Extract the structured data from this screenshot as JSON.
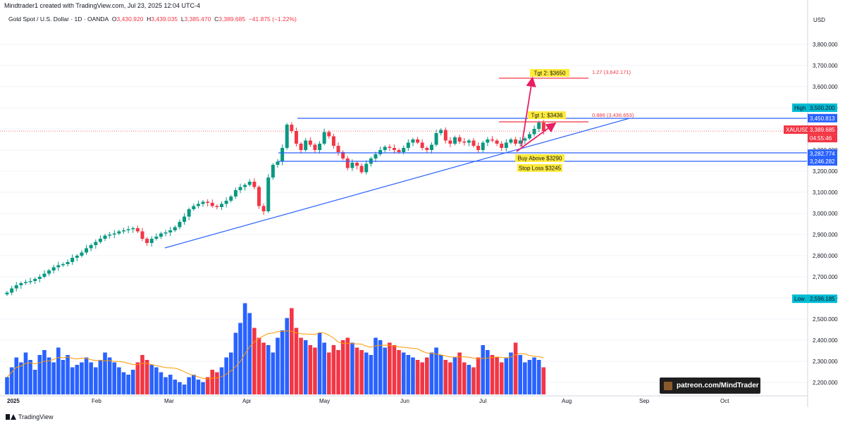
{
  "header": {
    "creator_line": "Mindtrader1 created with TradingView.com, Jul 23, 2025 12:04 UTC-4",
    "symbol_desc": "Gold Spot / U.S. Dollar · 1D · OANDA",
    "open_label": "O",
    "open": "3,430.920",
    "high_label": "H",
    "high": "3,439.035",
    "low_label": "L",
    "low": "3,385.470",
    "close_label": "C",
    "close": "3,389.685",
    "change": "−41.875 (−1.22%)"
  },
  "axis": {
    "currency": "USD"
  },
  "labels": {
    "high_tag": "High",
    "high_value": "3,500.200",
    "level_1": "3,450.813",
    "symbol_tag": "XAUUSD",
    "last_price": "3,389.685",
    "countdown": "04:55:46",
    "level_2": "3,282.774",
    "level_3": "3,246.282",
    "low_tag": "Low",
    "low_value": "2,596.185",
    "fib_1": "0.886 (3,436.653)",
    "fib_2": "1.27 (3,642.171)"
  },
  "annotations": {
    "tgt1": "Tgt 1: $3436",
    "tgt2": "Tgt 2: $3650",
    "buy": "Buy Above $3290",
    "stop": "Stop Loss $3245"
  },
  "footer": {
    "brand": "TradingView",
    "patreon": "patreon.com/MindTrader"
  },
  "colors": {
    "up": "#089981",
    "down": "#f23645",
    "vol_up": "#2962ff",
    "vol_down": "#f23645",
    "trend": "#2962ff",
    "arrow": "#e91e63",
    "tag": "#ffeb3b"
  },
  "chart_data": {
    "type": "candlestick",
    "y_axis_ticks": [
      "3,800.000",
      "3,700.000",
      "3,600.000",
      "3,500.000",
      "3,400.000",
      "3,300.000",
      "3,200.000",
      "3,100.000",
      "3,000.000",
      "2,900.000",
      "2,800.000",
      "2,700.000",
      "2,600.000",
      "2,500.000",
      "2,400.000",
      "2,300.000",
      "2,200.000"
    ],
    "x_axis_ticks": [
      "2025",
      "Feb",
      "Mar",
      "Apr",
      "May",
      "Jun",
      "Jul",
      "Aug",
      "Sep",
      "Oct"
    ],
    "price_path": [
      2625,
      2645,
      2660,
      2670,
      2675,
      2680,
      2690,
      2700,
      2715,
      2730,
      2745,
      2755,
      2760,
      2770,
      2790,
      2800,
      2815,
      2835,
      2850,
      2865,
      2880,
      2895,
      2900,
      2905,
      2915,
      2920,
      2925,
      2930,
      2915,
      2880,
      2860,
      2880,
      2890,
      2905,
      2910,
      2920,
      2935,
      2960,
      2985,
      3020,
      3035,
      3045,
      3055,
      3050,
      3035,
      3030,
      3045,
      3060,
      3080,
      3110,
      3125,
      3135,
      3150,
      3125,
      3035,
      3010,
      3170,
      3230,
      3245,
      3310,
      3420,
      3390,
      3330,
      3300,
      3345,
      3325,
      3300,
      3330,
      3385,
      3365,
      3320,
      3290,
      3260,
      3215,
      3240,
      3225,
      3195,
      3235,
      3260,
      3280,
      3300,
      3315,
      3310,
      3300,
      3290,
      3310,
      3335,
      3350,
      3335,
      3310,
      3300,
      3325,
      3380,
      3395,
      3345,
      3330,
      3360,
      3340,
      3335,
      3345,
      3320,
      3300,
      3335,
      3350,
      3345,
      3330,
      3310,
      3335,
      3350,
      3330,
      3345,
      3355,
      3375,
      3400,
      3430,
      3390
    ],
    "levels": [
      3500.2,
      3450.813,
      3282.774,
      3246.282,
      2596.185,
      3436.653,
      3642.171
    ],
    "volume": [
      320,
      360,
      400,
      380,
      420,
      390,
      350,
      410,
      430,
      400,
      380,
      440,
      390,
      410,
      360,
      370,
      380,
      400,
      380,
      360,
      390,
      420,
      400,
      380,
      360,
      340,
      330,
      350,
      380,
      410,
      390,
      370,
      360,
      340,
      320,
      330,
      310,
      300,
      290,
      320,
      330,
      310,
      300,
      320,
      350,
      340,
      360,
      400,
      420,
      500,
      540,
      620,
      580,
      520,
      480,
      460,
      450,
      420,
      480,
      510,
      560,
      600,
      520,
      480,
      470,
      450,
      440,
      500,
      460,
      420,
      450,
      430,
      470,
      480,
      460,
      440,
      430,
      420,
      410,
      480,
      470,
      440,
      460,
      450,
      430,
      420,
      410,
      400,
      390,
      380,
      400,
      420,
      440,
      410,
      390,
      380,
      400,
      420,
      380,
      370,
      360,
      400,
      450,
      430,
      410,
      400,
      380,
      400,
      420,
      460,
      410,
      380,
      390,
      400,
      390,
      360
    ]
  }
}
